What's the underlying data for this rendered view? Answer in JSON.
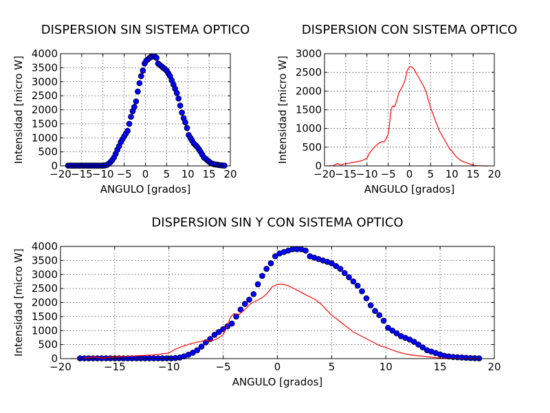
{
  "colors": {
    "marker_series": "#0000ff",
    "line_series": "#ff0000",
    "marker_edge": "#000000"
  },
  "chart_data": [
    {
      "id": "p1",
      "type": "scatter",
      "title": "DISPERSION SIN SISTEMA OPTICO",
      "xlabel": "ANGULO [grados]",
      "ylabel": "Intensidad [micro W]",
      "xlim": [
        -20,
        20
      ],
      "ylim": [
        0,
        4000
      ],
      "xticks": [
        -20,
        -15,
        -10,
        -5,
        0,
        5,
        10,
        15,
        20
      ],
      "yticks": [
        0,
        500,
        1000,
        1500,
        2000,
        2500,
        3000,
        3500,
        4000
      ],
      "grid": true,
      "series": [
        {
          "style": "markers",
          "color": "#0000ff",
          "ref": "sin"
        }
      ]
    },
    {
      "id": "p2",
      "type": "line",
      "title": "DISPERSION CON SISTEMA OPTICO",
      "xlabel": "ANGULO [grados]",
      "ylabel": "Intensidad [micro W]",
      "xlim": [
        -20,
        20
      ],
      "ylim": [
        0,
        3000
      ],
      "xticks": [
        -20,
        -15,
        -10,
        -5,
        0,
        5,
        10,
        15,
        20
      ],
      "yticks": [
        0,
        500,
        1000,
        1500,
        2000,
        2500,
        3000
      ],
      "grid": true,
      "series": [
        {
          "style": "line",
          "color": "#ff0000",
          "ref": "con"
        }
      ]
    },
    {
      "id": "p3",
      "type": "scatter",
      "title": "DISPERSION SIN Y CON SISTEMA OPTICO",
      "xlabel": "ANGULO [grados]",
      "ylabel": "Intensidad [micro W]",
      "xlim": [
        -20,
        20
      ],
      "ylim": [
        0,
        4000
      ],
      "xticks": [
        -20,
        -15,
        -10,
        -5,
        0,
        5,
        10,
        15,
        20
      ],
      "yticks": [
        0,
        500,
        1000,
        1500,
        2000,
        2500,
        3000,
        3500,
        4000
      ],
      "grid": true,
      "series": [
        {
          "style": "markers",
          "color": "#0000ff",
          "ref": "sin"
        },
        {
          "style": "line",
          "color": "#ff0000",
          "ref": "con"
        }
      ]
    }
  ],
  "series_data": {
    "sin": {
      "x": [
        -18.2,
        -17.8,
        -17.4,
        -17.0,
        -16.6,
        -16.2,
        -15.8,
        -15.4,
        -15.0,
        -14.6,
        -14.2,
        -13.8,
        -13.4,
        -13.0,
        -12.6,
        -12.2,
        -11.8,
        -11.4,
        -11.0,
        -10.6,
        -10.2,
        -9.8,
        -9.4,
        -9.0,
        -8.6,
        -8.2,
        -7.8,
        -7.4,
        -7.0,
        -6.6,
        -6.2,
        -5.8,
        -5.4,
        -5.0,
        -4.6,
        -4.2,
        -3.8,
        -3.4,
        -3.0,
        -2.6,
        -2.2,
        -1.8,
        -1.4,
        -1.0,
        -0.6,
        -0.2,
        0.2,
        0.6,
        1.0,
        1.4,
        1.8,
        2.2,
        2.6,
        3.0,
        3.4,
        3.8,
        4.2,
        4.6,
        5.0,
        5.4,
        5.8,
        6.2,
        6.6,
        7.0,
        7.4,
        7.8,
        8.2,
        8.6,
        9.0,
        9.4,
        9.8,
        10.2,
        10.6,
        11.0,
        11.4,
        11.8,
        12.2,
        12.6,
        13.0,
        13.4,
        13.8,
        14.2,
        14.6,
        15.0,
        15.4,
        15.8,
        16.2,
        16.6,
        17.0,
        17.4,
        17.8,
        18.2,
        18.6
      ],
      "y": [
        10,
        10,
        10,
        10,
        10,
        10,
        10,
        10,
        10,
        10,
        10,
        10,
        10,
        10,
        10,
        10,
        10,
        10,
        10,
        10,
        10,
        10,
        20,
        40,
        80,
        140,
        210,
        300,
        430,
        580,
        700,
        850,
        950,
        1050,
        1150,
        1250,
        1500,
        1750,
        1950,
        2100,
        2300,
        2650,
        2950,
        3200,
        3400,
        3650,
        3750,
        3800,
        3850,
        3900,
        3900,
        3900,
        3850,
        3650,
        3600,
        3550,
        3500,
        3450,
        3400,
        3300,
        3200,
        3050,
        2900,
        2750,
        2600,
        2400,
        2150,
        1900,
        1700,
        1550,
        1350,
        1100,
        1000,
        900,
        800,
        740,
        680,
        600,
        500,
        400,
        300,
        250,
        200,
        150,
        100,
        75,
        60,
        50,
        40,
        30,
        20,
        15,
        10
      ]
    },
    "con": {
      "x": [
        -19.0,
        -18.0,
        -17.5,
        -17.0,
        -16.5,
        -16.0,
        -15.5,
        -15.0,
        -14.5,
        -14.0,
        -13.5,
        -13.0,
        -12.5,
        -12.0,
        -11.5,
        -11.0,
        -10.5,
        -10.0,
        -9.5,
        -9.0,
        -8.5,
        -8.0,
        -7.5,
        -7.0,
        -6.5,
        -6.0,
        -5.5,
        -5.0,
        -4.7,
        -4.5,
        -4.3,
        -4.0,
        -3.5,
        -3.0,
        -2.5,
        -2.0,
        -1.5,
        -1.0,
        -0.5,
        0.0,
        0.5,
        1.0,
        1.5,
        2.0,
        2.5,
        3.0,
        3.5,
        4.0,
        4.5,
        5.0,
        5.5,
        6.0,
        6.5,
        7.0,
        7.5,
        8.0,
        8.5,
        9.0,
        9.5,
        10.0,
        10.5,
        11.0,
        11.5,
        12.0,
        12.5,
        13.0,
        13.5,
        14.0,
        14.5,
        15.0,
        15.5,
        16.0,
        17.0,
        18.0,
        18.6
      ],
      "y": [
        0,
        5,
        30,
        60,
        40,
        20,
        50,
        60,
        70,
        80,
        90,
        100,
        110,
        120,
        130,
        150,
        180,
        200,
        320,
        400,
        470,
        530,
        580,
        620,
        650,
        640,
        720,
        850,
        1100,
        1300,
        1500,
        1600,
        1580,
        1750,
        1950,
        2050,
        2150,
        2300,
        2550,
        2650,
        2650,
        2600,
        2500,
        2400,
        2300,
        2200,
        2100,
        1950,
        1750,
        1550,
        1400,
        1250,
        1100,
        950,
        850,
        750,
        650,
        550,
        450,
        400,
        320,
        250,
        200,
        150,
        120,
        100,
        80,
        60,
        40,
        20,
        10,
        5,
        2,
        0,
        0
      ]
    }
  }
}
